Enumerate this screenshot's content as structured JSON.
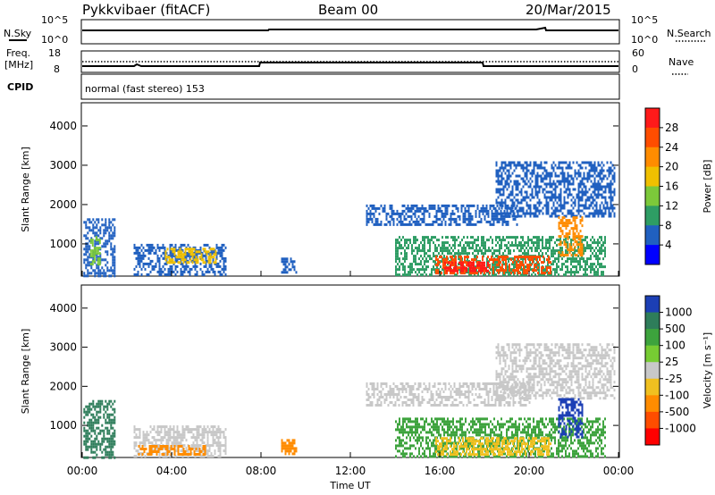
{
  "header": {
    "title": "Pykkvibaer (fitACF)",
    "beam": "Beam 00",
    "date": "20/Mar/2015"
  },
  "params": {
    "nsky_label": "N.Sky",
    "nsearch_label": "N.Search",
    "nsky_ticks": [
      "10^5",
      "10^0"
    ],
    "nsearch_ticks": [
      "10^5",
      "10^0"
    ],
    "freq_label": "Freq.",
    "freq_unit": "[MHz]",
    "freq_ticks": [
      "18",
      "8"
    ],
    "nave_label": "Nave",
    "nave_ticks": [
      "60",
      "0"
    ],
    "cpid_label": "CPID",
    "cpid_value": "normal (fast stereo) 153"
  },
  "chart_data": [
    {
      "type": "heatmap",
      "name": "power",
      "ylabel": "Slant Range [km]",
      "ylim": [
        180,
        4590
      ],
      "yticks": [
        1000,
        2000,
        3000,
        4000
      ],
      "xlabel": "Time UT",
      "xlim": [
        0,
        24
      ],
      "xticks": [
        "00:00",
        "04:00",
        "08:00",
        "12:00",
        "16:00",
        "20:00",
        "00:00"
      ],
      "colorbar": {
        "label": "Power [dB]",
        "ticks": [
          "28",
          "24",
          "20",
          "16",
          "12",
          "8",
          "4"
        ],
        "colors": [
          "#ff1a1a",
          "#ff4d00",
          "#ff8c00",
          "#f0c000",
          "#7cc93a",
          "#2e9d64",
          "#2060c0",
          "#0000ff"
        ]
      },
      "regions": [
        {
          "t0": 0.05,
          "t1": 1.45,
          "r0": 200,
          "r1": 1650,
          "value": "#2060c0"
        },
        {
          "t0": 0.35,
          "t1": 0.8,
          "r0": 500,
          "r1": 1200,
          "value": "#7cc93a"
        },
        {
          "t0": 2.3,
          "t1": 6.4,
          "r0": 200,
          "r1": 1000,
          "value": "#2060c0"
        },
        {
          "t0": 3.7,
          "t1": 6.0,
          "r0": 500,
          "r1": 900,
          "value": "#f0c000"
        },
        {
          "t0": 8.9,
          "t1": 9.6,
          "r0": 250,
          "r1": 650,
          "value": "#2060c0"
        },
        {
          "t0": 12.7,
          "t1": 19.5,
          "r0": 1500,
          "r1": 2000,
          "value": "#2060c0"
        },
        {
          "t0": 14.0,
          "t1": 23.4,
          "r0": 200,
          "r1": 1200,
          "value": "#2e9d64"
        },
        {
          "t0": 15.8,
          "t1": 21.0,
          "r0": 250,
          "r1": 700,
          "value": "#ff4d00"
        },
        {
          "t0": 16.2,
          "t1": 18.2,
          "r0": 300,
          "r1": 550,
          "value": "#ff1a1a"
        },
        {
          "t0": 18.5,
          "t1": 23.8,
          "r0": 1700,
          "r1": 3100,
          "value": "#2060c0"
        },
        {
          "t0": 21.3,
          "t1": 22.4,
          "r0": 700,
          "r1": 1700,
          "value": "#ff8c00"
        }
      ]
    },
    {
      "type": "heatmap",
      "name": "velocity",
      "ylabel": "Slant Range [km]",
      "ylim": [
        180,
        4590
      ],
      "yticks": [
        1000,
        2000,
        3000,
        4000
      ],
      "xlabel": "Time UT",
      "xlim": [
        0,
        24
      ],
      "xticks": [
        "00:00",
        "04:00",
        "08:00",
        "12:00",
        "16:00",
        "20:00",
        "00:00"
      ],
      "colorbar": {
        "label": "Velocity [m s⁻¹]",
        "ticks": [
          "1000",
          "500",
          "100",
          "25",
          "-25",
          "-100",
          "-500",
          "-1000"
        ],
        "colors": [
          "#1c3fb5",
          "#2e7d5a",
          "#3da33d",
          "#77cc33",
          "#c8c8c8",
          "#f0c020",
          "#ff8c00",
          "#ff4d00",
          "#ff0000"
        ]
      },
      "regions": [
        {
          "t0": 0.05,
          "t1": 1.45,
          "r0": 200,
          "r1": 1650,
          "value": "#2e7d5a"
        },
        {
          "t0": 2.3,
          "t1": 6.4,
          "r0": 200,
          "r1": 1000,
          "value": "#c8c8c8"
        },
        {
          "t0": 2.5,
          "t1": 5.5,
          "r0": 250,
          "r1": 500,
          "value": "#ff8c00"
        },
        {
          "t0": 8.9,
          "t1": 9.6,
          "r0": 250,
          "r1": 650,
          "value": "#ff8c00"
        },
        {
          "t0": 12.7,
          "t1": 20.0,
          "r0": 1500,
          "r1": 2100,
          "value": "#c8c8c8"
        },
        {
          "t0": 14.0,
          "t1": 23.4,
          "r0": 200,
          "r1": 1200,
          "value": "#3da33d"
        },
        {
          "t0": 15.8,
          "t1": 21.0,
          "r0": 250,
          "r1": 700,
          "value": "#f0c020"
        },
        {
          "t0": 18.5,
          "t1": 23.8,
          "r0": 1700,
          "r1": 3100,
          "value": "#c8c8c8"
        },
        {
          "t0": 21.3,
          "t1": 22.4,
          "r0": 700,
          "r1": 1700,
          "value": "#1c3fb5"
        }
      ]
    }
  ]
}
